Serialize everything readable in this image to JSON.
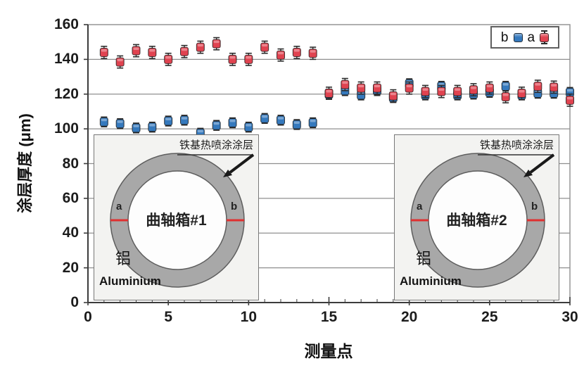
{
  "chart_data": {
    "type": "scatter",
    "xlabel": "测量点",
    "ylabel": "涂层厚度 (μm)",
    "xlim": [
      0,
      30
    ],
    "ylim": [
      0,
      160
    ],
    "x_ticks": [
      0,
      5,
      10,
      15,
      20,
      25,
      30
    ],
    "y_ticks": [
      0,
      20,
      40,
      60,
      80,
      100,
      120,
      140,
      160
    ],
    "grid": "horizontal",
    "legend_position": "top-right",
    "x": [
      1,
      2,
      3,
      4,
      5,
      6,
      7,
      8,
      9,
      10,
      11,
      12,
      13,
      14,
      15,
      16,
      17,
      18,
      19,
      20,
      21,
      22,
      23,
      24,
      25,
      26,
      27,
      28,
      29,
      30
    ],
    "series": [
      {
        "name": "b",
        "color": "#3579bd",
        "marker": "square",
        "error": 2.8,
        "values": [
          104,
          103,
          100.5,
          101,
          104.5,
          105,
          97.5,
          102,
          103.5,
          101,
          106,
          105,
          102.5,
          103.5,
          120,
          122,
          119.5,
          122,
          118,
          126,
          119.5,
          124.5,
          119.5,
          120,
          121,
          124.5,
          119.5,
          120.5,
          120.5,
          121
        ]
      },
      {
        "name": "a",
        "color": "#e04350",
        "marker": "square",
        "error": 3.5,
        "values": [
          144,
          138.5,
          145,
          144,
          140,
          144.5,
          147,
          149,
          140,
          140,
          147,
          142.5,
          144,
          143.5,
          120.5,
          125.5,
          123.5,
          123.5,
          119,
          123.5,
          121.5,
          121.5,
          121.5,
          122.5,
          123.5,
          118.5,
          120.5,
          124.5,
          124,
          116.5
        ]
      }
    ]
  },
  "legend": {
    "items": [
      {
        "label": "b",
        "color": "#3579bd",
        "error_bar": false
      },
      {
        "label": "a",
        "color": "#e04350",
        "error_bar": true
      }
    ]
  },
  "insets": [
    {
      "title": "曲轴箱#1",
      "coating_label": "铁基热喷涂涂层",
      "material_cn": "铝",
      "material_en": "Aluminium",
      "mark_a": "a",
      "mark_b": "b"
    },
    {
      "title": "曲轴箱#2",
      "coating_label": "铁基热喷涂涂层",
      "material_cn": "铝",
      "material_en": "Aluminium",
      "mark_a": "a",
      "mark_b": "b"
    }
  ],
  "colors": {
    "marker_a": "#e04350",
    "marker_b": "#3579bd",
    "gridline": "#8f8f8f",
    "axis": "#3c3c3c",
    "error_bar": "#2b2b2b",
    "ring_fill": "#a8a8a8",
    "ring_stroke": "#5d5d5d",
    "mark_line": "#e03030",
    "inset_bg": "#f3f3f1"
  }
}
